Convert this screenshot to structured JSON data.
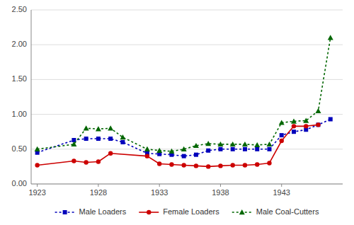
{
  "chart_data": {
    "type": "line",
    "series": [
      {
        "name": "Male Loaders",
        "color": "#0000bb",
        "marker": "square",
        "line_style": "dotted",
        "x": [
          1923,
          1926,
          1927,
          1928,
          1929,
          1930,
          1932,
          1933,
          1934,
          1935,
          1936,
          1937,
          1938,
          1939,
          1940,
          1941,
          1942,
          1943,
          1944,
          1945,
          1946,
          1947
        ],
        "values": [
          0.45,
          0.63,
          0.65,
          0.65,
          0.65,
          0.6,
          0.44,
          0.43,
          0.42,
          0.4,
          0.42,
          0.48,
          0.5,
          0.5,
          0.5,
          0.5,
          0.5,
          0.7,
          0.75,
          0.78,
          0.85,
          0.93
        ]
      },
      {
        "name": "Female Loaders",
        "color": "#cc0000",
        "marker": "circle",
        "line_style": "solid",
        "x": [
          1923,
          1926,
          1927,
          1928,
          1929,
          1932,
          1933,
          1934,
          1935,
          1936,
          1937,
          1938,
          1939,
          1940,
          1941,
          1942,
          1943,
          1944,
          1945,
          1946
        ],
        "values": [
          0.27,
          0.33,
          0.31,
          0.32,
          0.44,
          0.4,
          0.29,
          0.28,
          0.27,
          0.26,
          0.25,
          0.26,
          0.27,
          0.27,
          0.28,
          0.3,
          0.62,
          0.83,
          0.83,
          0.85
        ]
      },
      {
        "name": "Male Coal-Cutters",
        "color": "#006600",
        "marker": "triangle",
        "line_style": "dotted",
        "x": [
          1923,
          1926,
          1927,
          1928,
          1929,
          1930,
          1932,
          1933,
          1934,
          1935,
          1936,
          1937,
          1938,
          1939,
          1940,
          1941,
          1942,
          1943,
          1944,
          1945,
          1946,
          1947
        ],
        "values": [
          0.5,
          0.57,
          0.8,
          0.79,
          0.8,
          0.67,
          0.5,
          0.48,
          0.47,
          0.5,
          0.55,
          0.58,
          0.57,
          0.57,
          0.57,
          0.56,
          0.57,
          0.88,
          0.9,
          0.91,
          1.05,
          2.1
        ]
      }
    ],
    "xlim": [
      1922.5,
      1948
    ],
    "xticks": [
      1923,
      1928,
      1933,
      1938,
      1943
    ],
    "ylim": [
      0.0,
      2.5
    ],
    "yticks": [
      {
        "value": 0.0,
        "label": "0.00"
      },
      {
        "value": 0.5,
        "label": "0.50"
      },
      {
        "value": 1.0,
        "label": "1.00"
      },
      {
        "value": 1.5,
        "label": "1.50"
      },
      {
        "value": 2.0,
        "label": "2.00"
      },
      {
        "value": 2.5,
        "label": "2.50"
      }
    ],
    "grid": true,
    "legend": "bottom"
  }
}
